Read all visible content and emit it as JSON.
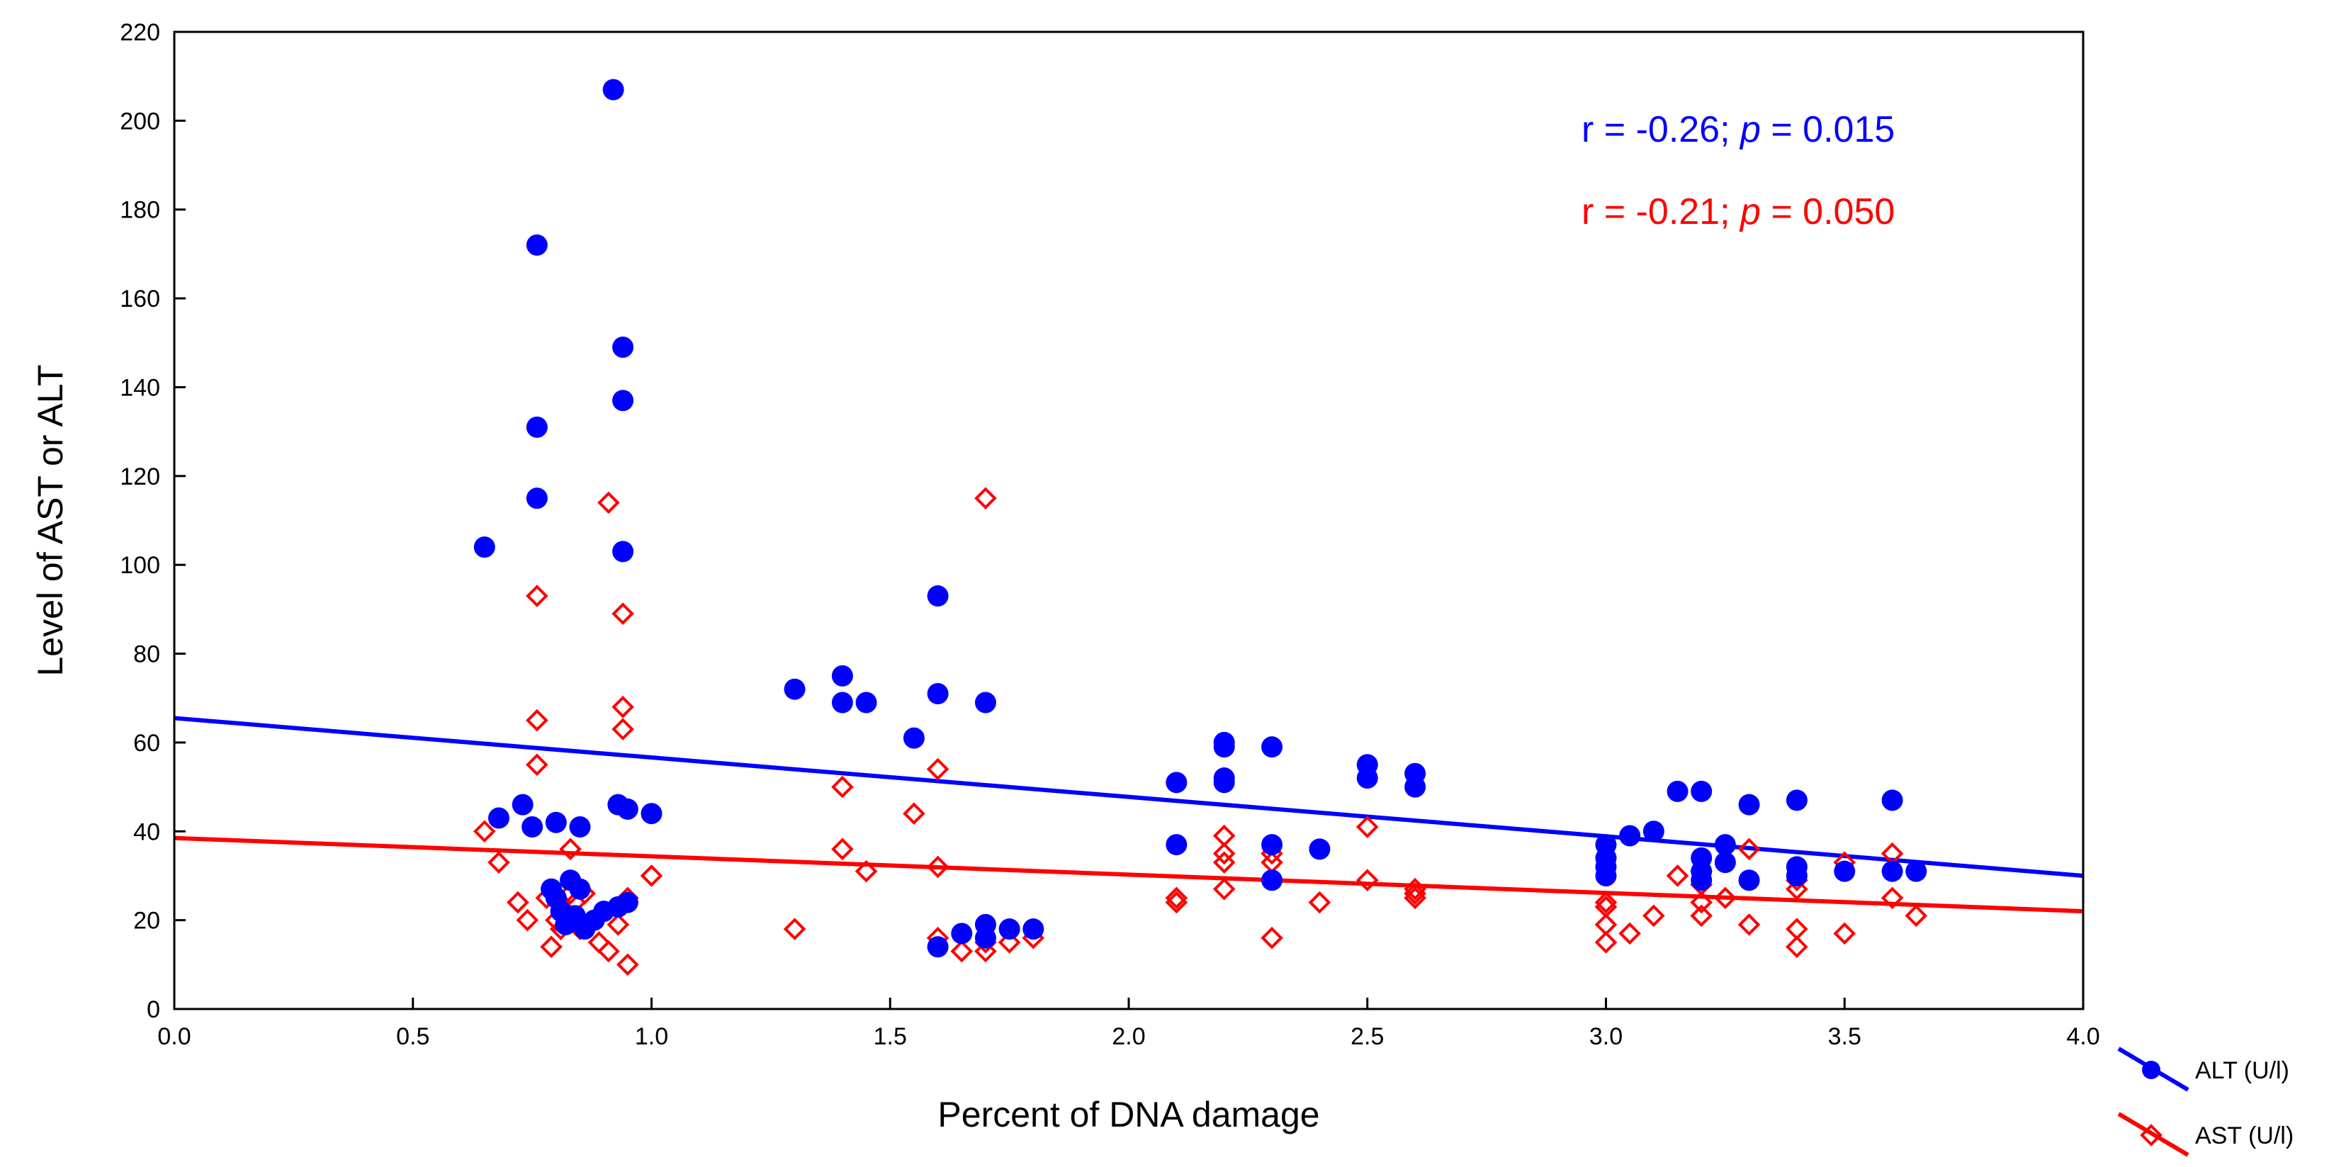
{
  "chart_data": {
    "type": "scatter",
    "title": "",
    "xlabel": "Percent of DNA damage",
    "ylabel": "Level of AST or ALT",
    "xlim": [
      0.0,
      4.0
    ],
    "ylim": [
      0,
      220
    ],
    "x_ticks": [
      0.0,
      0.5,
      1.0,
      1.5,
      2.0,
      2.5,
      3.0,
      3.5,
      4.0
    ],
    "x_tick_labels": [
      "0.0",
      "0.5",
      "1.0",
      "1.5",
      "2.0",
      "2.5",
      "3.0",
      "3.5",
      "4.0"
    ],
    "y_ticks": [
      0,
      20,
      40,
      60,
      80,
      100,
      120,
      140,
      160,
      180,
      200,
      220
    ],
    "y_tick_labels": [
      "0",
      "20",
      "40",
      "60",
      "80",
      "100",
      "120",
      "140",
      "160",
      "180",
      "200",
      "220"
    ],
    "grid": false,
    "legend_position": "outside bottom-right",
    "annotations": [
      {
        "series": "ALT (U/l)",
        "r_text": "r = -0.26; ",
        "p_symbol": "p",
        "p_text": " = 0.015",
        "color": "#0000ff"
      },
      {
        "series": "AST (U/l)",
        "r_text": "r = -0.21; ",
        "p_symbol": "p",
        "p_text": " = 0.050",
        "color": "#ff0000"
      }
    ],
    "series": [
      {
        "name": "ALT (U/l)",
        "color": "#0000ff",
        "marker": "filled-circle",
        "fit_line": {
          "x": [
            0.0,
            4.0
          ],
          "y": [
            65.5,
            30.0
          ]
        },
        "points": [
          [
            0.65,
            104
          ],
          [
            0.68,
            43
          ],
          [
            0.73,
            46
          ],
          [
            0.75,
            41
          ],
          [
            0.76,
            172
          ],
          [
            0.76,
            131
          ],
          [
            0.76,
            115
          ],
          [
            0.79,
            27
          ],
          [
            0.8,
            42
          ],
          [
            0.8,
            25
          ],
          [
            0.81,
            22
          ],
          [
            0.82,
            19
          ],
          [
            0.83,
            29
          ],
          [
            0.84,
            21
          ],
          [
            0.85,
            41
          ],
          [
            0.85,
            27
          ],
          [
            0.86,
            18
          ],
          [
            0.88,
            20
          ],
          [
            0.9,
            22
          ],
          [
            0.92,
            207
          ],
          [
            0.93,
            46
          ],
          [
            0.93,
            23
          ],
          [
            0.94,
            149
          ],
          [
            0.94,
            137
          ],
          [
            0.94,
            103
          ],
          [
            0.95,
            45
          ],
          [
            0.95,
            24
          ],
          [
            1.0,
            44
          ],
          [
            1.3,
            72
          ],
          [
            1.4,
            75
          ],
          [
            1.4,
            69
          ],
          [
            1.45,
            69
          ],
          [
            1.55,
            61
          ],
          [
            1.6,
            93
          ],
          [
            1.6,
            71
          ],
          [
            1.6,
            14
          ],
          [
            1.65,
            17
          ],
          [
            1.7,
            69
          ],
          [
            1.7,
            19
          ],
          [
            1.7,
            16
          ],
          [
            1.75,
            18
          ],
          [
            1.8,
            18
          ],
          [
            2.1,
            51
          ],
          [
            2.1,
            37
          ],
          [
            2.2,
            60
          ],
          [
            2.2,
            59
          ],
          [
            2.2,
            52
          ],
          [
            2.2,
            51
          ],
          [
            2.3,
            59
          ],
          [
            2.3,
            37
          ],
          [
            2.3,
            29
          ],
          [
            2.4,
            36
          ],
          [
            2.5,
            55
          ],
          [
            2.5,
            52
          ],
          [
            2.6,
            53
          ],
          [
            2.6,
            50
          ],
          [
            3.0,
            37
          ],
          [
            3.0,
            34
          ],
          [
            3.0,
            32
          ],
          [
            3.0,
            30
          ],
          [
            3.05,
            39
          ],
          [
            3.1,
            40
          ],
          [
            3.15,
            49
          ],
          [
            3.2,
            49
          ],
          [
            3.2,
            34
          ],
          [
            3.2,
            31
          ],
          [
            3.2,
            29
          ],
          [
            3.25,
            37
          ],
          [
            3.25,
            33
          ],
          [
            3.3,
            46
          ],
          [
            3.3,
            29
          ],
          [
            3.4,
            47
          ],
          [
            3.4,
            32
          ],
          [
            3.4,
            30
          ],
          [
            3.5,
            31
          ],
          [
            3.6,
            47
          ],
          [
            3.6,
            31
          ],
          [
            3.65,
            31
          ]
        ]
      },
      {
        "name": "AST (U/l)",
        "color": "#ff0000",
        "marker": "open-diamond",
        "fit_line": {
          "x": [
            0.0,
            4.0
          ],
          "y": [
            38.5,
            22.0
          ]
        },
        "points": [
          [
            0.65,
            40
          ],
          [
            0.68,
            33
          ],
          [
            0.72,
            24
          ],
          [
            0.74,
            20
          ],
          [
            0.76,
            93
          ],
          [
            0.76,
            65
          ],
          [
            0.76,
            55
          ],
          [
            0.78,
            25
          ],
          [
            0.79,
            14
          ],
          [
            0.8,
            20
          ],
          [
            0.81,
            18
          ],
          [
            0.82,
            22
          ],
          [
            0.83,
            36
          ],
          [
            0.83,
            26
          ],
          [
            0.84,
            24
          ],
          [
            0.85,
            18
          ],
          [
            0.86,
            26
          ],
          [
            0.88,
            20
          ],
          [
            0.89,
            15
          ],
          [
            0.91,
            114
          ],
          [
            0.91,
            13
          ],
          [
            0.93,
            19
          ],
          [
            0.94,
            89
          ],
          [
            0.94,
            68
          ],
          [
            0.94,
            63
          ],
          [
            0.95,
            25
          ],
          [
            0.95,
            10
          ],
          [
            1.0,
            30
          ],
          [
            1.3,
            18
          ],
          [
            1.4,
            50
          ],
          [
            1.4,
            36
          ],
          [
            1.45,
            31
          ],
          [
            1.55,
            44
          ],
          [
            1.6,
            54
          ],
          [
            1.6,
            32
          ],
          [
            1.6,
            16
          ],
          [
            1.65,
            13
          ],
          [
            1.7,
            115
          ],
          [
            1.7,
            15
          ],
          [
            1.7,
            13
          ],
          [
            1.75,
            15
          ],
          [
            1.8,
            16
          ],
          [
            2.1,
            25
          ],
          [
            2.1,
            24
          ],
          [
            2.2,
            39
          ],
          [
            2.2,
            35
          ],
          [
            2.2,
            33
          ],
          [
            2.2,
            27
          ],
          [
            2.3,
            35
          ],
          [
            2.3,
            33
          ],
          [
            2.3,
            16
          ],
          [
            2.4,
            24
          ],
          [
            2.5,
            41
          ],
          [
            2.5,
            29
          ],
          [
            2.6,
            27
          ],
          [
            2.6,
            26
          ],
          [
            2.6,
            25
          ],
          [
            3.0,
            24
          ],
          [
            3.0,
            23
          ],
          [
            3.0,
            19
          ],
          [
            3.0,
            15
          ],
          [
            3.05,
            17
          ],
          [
            3.1,
            21
          ],
          [
            3.15,
            30
          ],
          [
            3.2,
            31
          ],
          [
            3.2,
            28
          ],
          [
            3.2,
            24
          ],
          [
            3.2,
            21
          ],
          [
            3.25,
            25
          ],
          [
            3.3,
            36
          ],
          [
            3.3,
            19
          ],
          [
            3.4,
            29
          ],
          [
            3.4,
            27
          ],
          [
            3.4,
            18
          ],
          [
            3.4,
            14
          ],
          [
            3.5,
            33
          ],
          [
            3.5,
            17
          ],
          [
            3.6,
            35
          ],
          [
            3.6,
            25
          ],
          [
            3.65,
            21
          ]
        ]
      }
    ]
  }
}
